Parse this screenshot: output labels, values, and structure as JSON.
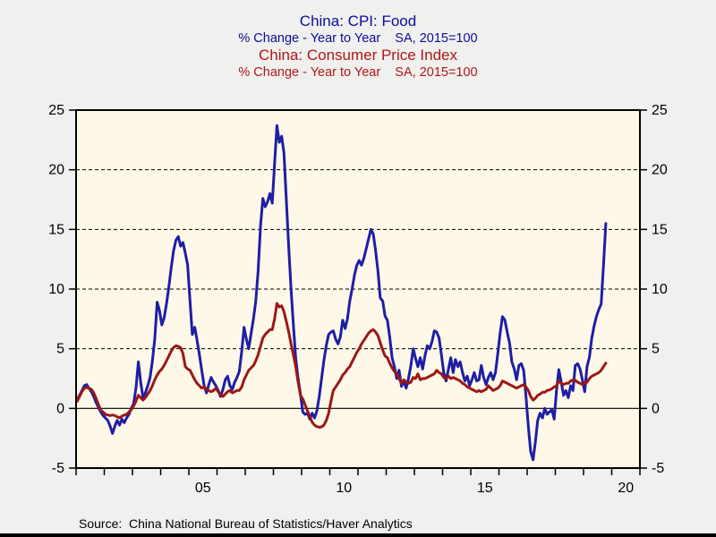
{
  "titles": {
    "food": {
      "title": "China: CPI: Food",
      "subtitle": "% Change - Year to Year    SA, 2015=100",
      "color": "#0c0c9c"
    },
    "cpi": {
      "title": "China: Consumer Price Index",
      "subtitle": "% Change - Year to Year    SA, 2015=100",
      "color": "#ae1717"
    }
  },
  "source": "Source:  China National Bureau of Statistics/Haver Analytics",
  "chart_data": {
    "type": "line",
    "plot_bg": "#fdf8e7",
    "frame_color": "#000000",
    "x_start": 2001,
    "x_end": 2021,
    "x_tick_interval_years": 1,
    "x_tick_labels": [
      {
        "label": "05",
        "x": 2005.5
      },
      {
        "label": "10",
        "x": 2010.5
      },
      {
        "label": "15",
        "x": 2015.5
      },
      {
        "label": "20",
        "x": 2020.5
      }
    ],
    "ylim": [
      -5,
      25
    ],
    "y_ticks": [
      -5,
      0,
      5,
      10,
      15,
      20,
      25
    ],
    "grid_dashed_at": [
      5,
      10,
      15,
      20
    ],
    "zero_line_at": 0,
    "legend_position": "none",
    "frequency": "monthly",
    "start_month": "2001-01",
    "end_month": "2019-10",
    "series": [
      {
        "name": "China: CPI: Food (% chg YoY, SA 2015=100)",
        "color": "#1e1ea5",
        "values": [
          0.8,
          1.1,
          1.5,
          1.9,
          2.0,
          1.7,
          1.4,
          1.0,
          0.5,
          0.1,
          -0.3,
          -0.6,
          -0.8,
          -1.0,
          -1.5,
          -2.1,
          -1.5,
          -1.0,
          -1.4,
          -0.9,
          -1.2,
          -0.8,
          -0.5,
          0.0,
          0.4,
          1.7,
          3.9,
          2.2,
          0.9,
          1.3,
          1.9,
          2.6,
          4.0,
          5.8,
          8.9,
          8.2,
          7.0,
          7.6,
          8.8,
          10.2,
          11.8,
          13.2,
          14.1,
          14.4,
          13.6,
          13.9,
          13.0,
          12.0,
          9.0,
          6.2,
          6.8,
          5.7,
          4.5,
          3.2,
          1.9,
          1.3,
          2.0,
          2.6,
          2.2,
          1.9,
          1.5,
          1.0,
          1.6,
          2.4,
          2.7,
          1.9,
          1.6,
          2.2,
          2.6,
          3.1,
          4.8,
          6.8,
          5.8,
          5.0,
          6.3,
          7.5,
          9.0,
          11.5,
          15.3,
          17.6,
          16.9,
          17.3,
          18.0,
          17.2,
          20.5,
          23.7,
          22.3,
          22.8,
          21.4,
          17.5,
          13.5,
          10.0,
          7.0,
          4.2,
          2.5,
          1.2,
          -0.3,
          -0.5,
          -0.4,
          -0.9,
          -0.4,
          -0.8,
          -0.2,
          1.0,
          2.5,
          4.0,
          5.3,
          6.2,
          6.4,
          6.5,
          5.8,
          5.4,
          6.0,
          7.4,
          6.7,
          7.5,
          9.0,
          10.0,
          11.2,
          12.0,
          12.4,
          12.0,
          12.6,
          13.4,
          14.2,
          15.0,
          14.6,
          13.2,
          11.5,
          9.25,
          9.0,
          7.75,
          7.4,
          6.0,
          4.25,
          3.5,
          2.5,
          3.2,
          1.85,
          2.3,
          1.7,
          2.5,
          3.6,
          5.0,
          4.2,
          3.5,
          4.25,
          3.3,
          4.4,
          5.25,
          5.0,
          5.6,
          6.5,
          6.4,
          5.9,
          4.5,
          3.0,
          2.3,
          3.3,
          4.25,
          3.0,
          4.1,
          3.5,
          3.9,
          3.0,
          2.3,
          2.7,
          1.9,
          2.4,
          3.0,
          2.3,
          2.4,
          3.6,
          2.6,
          2.0,
          2.6,
          3.0,
          2.4,
          3.0,
          4.6,
          6.3,
          7.7,
          7.4,
          6.4,
          5.5,
          3.9,
          3.3,
          2.4,
          3.6,
          3.75,
          3.2,
          1.0,
          -1.5,
          -3.6,
          -4.3,
          -2.8,
          -1.0,
          -0.4,
          -0.8,
          0.0,
          -0.5,
          -0.3,
          -0.1,
          -0.9,
          1.5,
          3.25,
          2.2,
          1.1,
          1.5,
          0.9,
          1.9,
          1.5,
          3.6,
          3.75,
          3.3,
          2.4,
          1.4,
          3.5,
          4.3,
          5.9,
          6.9,
          7.7,
          8.3,
          8.75,
          12.0,
          15.5
        ]
      },
      {
        "name": "China: Consumer Price Index (% chg YoY, SA 2015=100)",
        "color": "#9c1717",
        "values": [
          0.6,
          1.0,
          1.4,
          1.7,
          1.75,
          1.7,
          1.6,
          1.3,
          0.85,
          0.35,
          -0.15,
          -0.3,
          -0.5,
          -0.55,
          -0.6,
          -0.55,
          -0.6,
          -0.7,
          -0.78,
          -0.65,
          -0.55,
          -0.5,
          -0.3,
          -0.1,
          0.2,
          0.6,
          1.1,
          0.9,
          0.7,
          0.9,
          1.2,
          1.5,
          1.9,
          2.4,
          2.8,
          3.1,
          3.3,
          3.6,
          4.0,
          4.4,
          4.8,
          5.1,
          5.25,
          5.2,
          5.1,
          4.6,
          3.5,
          3.3,
          3.2,
          2.8,
          2.4,
          2.1,
          1.9,
          1.7,
          1.8,
          1.6,
          1.5,
          1.4,
          1.5,
          1.7,
          1.4,
          1.2,
          1.0,
          1.2,
          1.4,
          1.5,
          1.3,
          1.4,
          1.5,
          1.5,
          1.8,
          2.4,
          2.8,
          3.2,
          3.4,
          3.6,
          4.0,
          4.5,
          5.2,
          5.9,
          6.2,
          6.4,
          6.6,
          6.6,
          7.5,
          8.8,
          8.5,
          8.6,
          8.1,
          7.3,
          6.4,
          5.4,
          4.5,
          3.5,
          2.2,
          1.1,
          0.8,
          0.3,
          -0.2,
          -0.7,
          -1.15,
          -1.4,
          -1.53,
          -1.58,
          -1.55,
          -1.4,
          -1.0,
          -0.4,
          0.6,
          1.5,
          1.8,
          2.1,
          2.4,
          2.8,
          3.0,
          3.3,
          3.5,
          3.9,
          4.3,
          4.7,
          5.0,
          5.4,
          5.7,
          6.0,
          6.3,
          6.5,
          6.6,
          6.4,
          6.1,
          5.5,
          4.9,
          4.4,
          4.25,
          3.8,
          3.4,
          3.1,
          2.9,
          2.5,
          2.1,
          2.4,
          2.2,
          2.1,
          2.2,
          2.6,
          2.5,
          2.9,
          2.4,
          2.5,
          2.5,
          2.6,
          2.7,
          2.8,
          2.9,
          3.2,
          3.0,
          2.9,
          2.6,
          2.5,
          2.7,
          2.5,
          2.6,
          2.5,
          2.4,
          2.3,
          2.1,
          2.0,
          1.8,
          1.7,
          1.6,
          1.5,
          1.4,
          1.5,
          1.4,
          1.5,
          1.6,
          1.9,
          1.7,
          1.5,
          1.6,
          1.7,
          1.9,
          2.3,
          2.2,
          2.1,
          2.0,
          1.9,
          1.8,
          1.7,
          1.8,
          1.9,
          2.0,
          1.8,
          1.5,
          1.0,
          0.7,
          0.85,
          1.1,
          1.2,
          1.35,
          1.35,
          1.5,
          1.55,
          1.65,
          1.8,
          1.9,
          2.3,
          2.1,
          2.0,
          2.1,
          2.1,
          2.3,
          2.4,
          2.35,
          2.2,
          2.1,
          2.0,
          2.1,
          2.2,
          2.5,
          2.7,
          2.8,
          2.9,
          3.0,
          3.2,
          3.5,
          3.8
        ]
      }
    ]
  }
}
